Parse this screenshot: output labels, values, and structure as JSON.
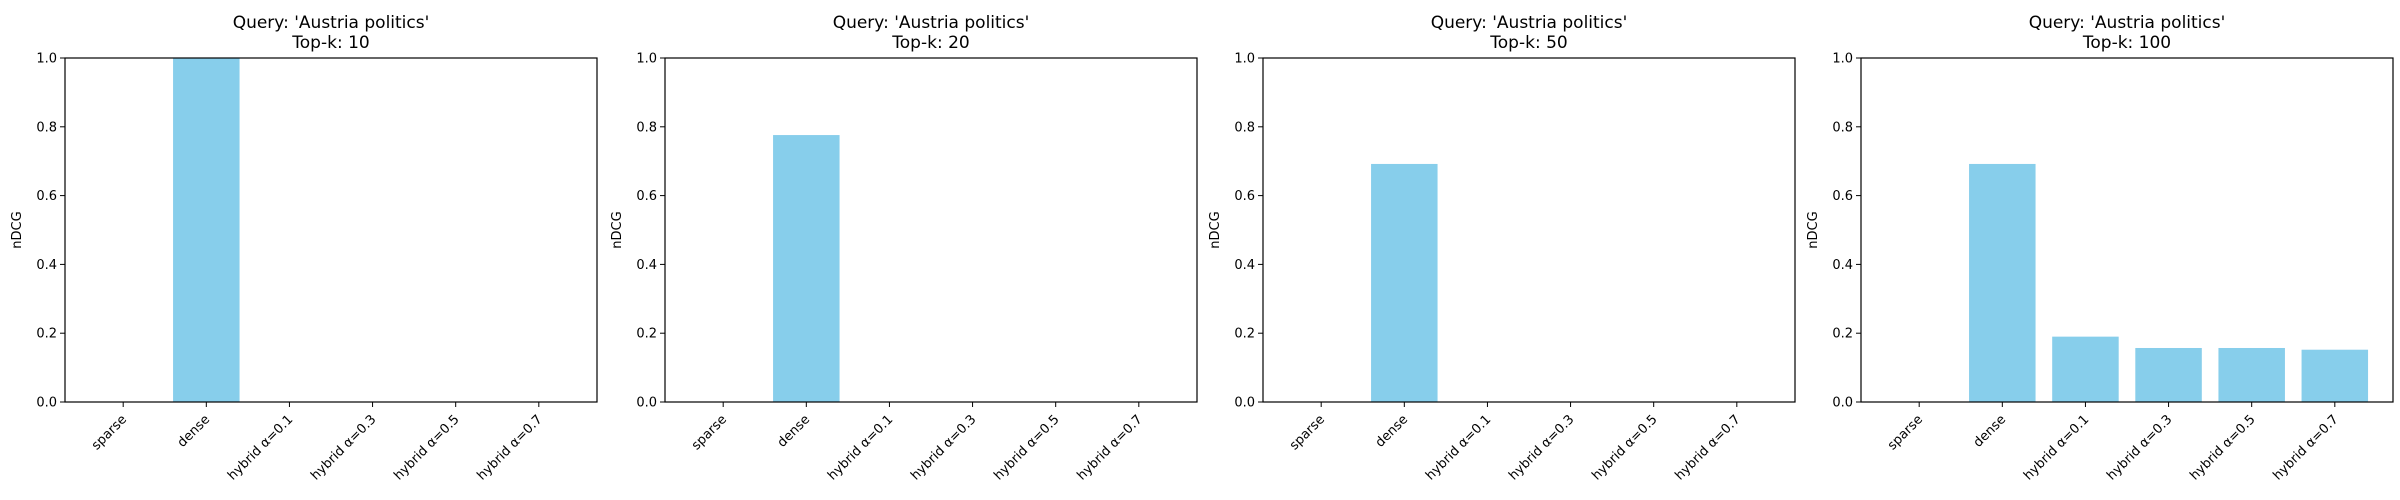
{
  "figure": {
    "background": "#ffffff",
    "bar_color": "#87CEEB"
  },
  "chart_data": [
    {
      "type": "bar",
      "title": "Query: 'Austria politics'",
      "subtitle": "Top-k: 10",
      "xlabel": "",
      "ylabel": "nDCG",
      "ylim": [
        0,
        1.0
      ],
      "yticks": [
        "0.0",
        "0.2",
        "0.4",
        "0.6",
        "0.8",
        "1.0"
      ],
      "categories": [
        "sparse",
        "dense",
        "hybrid α=0.1",
        "hybrid α=0.3",
        "hybrid α=0.5",
        "hybrid α=0.7"
      ],
      "values": [
        0.0,
        1.0,
        0.0,
        0.0,
        0.0,
        0.0
      ],
      "grid": false
    },
    {
      "type": "bar",
      "title": "Query: 'Austria politics'",
      "subtitle": "Top-k: 20",
      "xlabel": "",
      "ylabel": "nDCG",
      "ylim": [
        0,
        1.0
      ],
      "yticks": [
        "0.0",
        "0.2",
        "0.4",
        "0.6",
        "0.8",
        "1.0"
      ],
      "categories": [
        "sparse",
        "dense",
        "hybrid α=0.1",
        "hybrid α=0.3",
        "hybrid α=0.5",
        "hybrid α=0.7"
      ],
      "values": [
        0.0,
        0.776,
        0.0,
        0.0,
        0.0,
        0.0
      ],
      "grid": false
    },
    {
      "type": "bar",
      "title": "Query: 'Austria politics'",
      "subtitle": "Top-k: 50",
      "xlabel": "",
      "ylabel": "nDCG",
      "ylim": [
        0,
        1.0
      ],
      "yticks": [
        "0.0",
        "0.2",
        "0.4",
        "0.6",
        "0.8",
        "1.0"
      ],
      "categories": [
        "sparse",
        "dense",
        "hybrid α=0.1",
        "hybrid α=0.3",
        "hybrid α=0.5",
        "hybrid α=0.7"
      ],
      "values": [
        0.0,
        0.692,
        0.0,
        0.0,
        0.0,
        0.0
      ],
      "grid": false
    },
    {
      "type": "bar",
      "title": "Query: 'Austria politics'",
      "subtitle": "Top-k: 100",
      "xlabel": "",
      "ylabel": "nDCG",
      "ylim": [
        0,
        1.0
      ],
      "yticks": [
        "0.0",
        "0.2",
        "0.4",
        "0.6",
        "0.8",
        "1.0"
      ],
      "categories": [
        "sparse",
        "dense",
        "hybrid α=0.1",
        "hybrid α=0.3",
        "hybrid α=0.5",
        "hybrid α=0.7"
      ],
      "values": [
        0.0,
        0.692,
        0.19,
        0.157,
        0.157,
        0.152
      ],
      "grid": false
    }
  ]
}
